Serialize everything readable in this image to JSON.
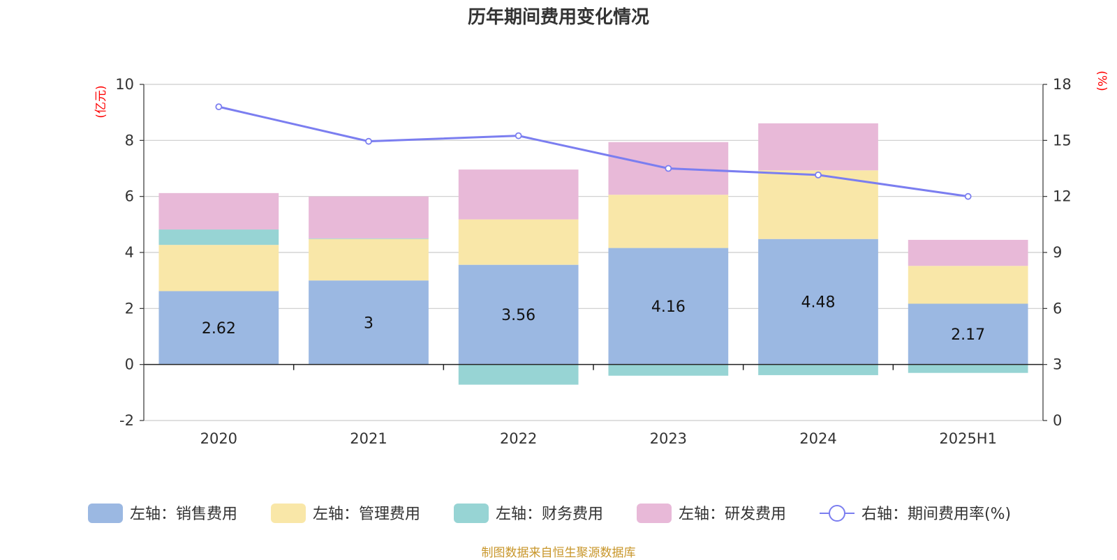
{
  "chart_data": {
    "type": "bar",
    "title": "历年期间费用变化情况",
    "categories": [
      "2020",
      "2021",
      "2022",
      "2023",
      "2024",
      "2025H1"
    ],
    "left_axis": {
      "unit": "(亿元)",
      "ylim": [
        -2,
        10
      ],
      "ticks": [
        "10",
        "8",
        "6",
        "4",
        "2",
        "0",
        "-2"
      ]
    },
    "right_axis": {
      "unit": "(%)",
      "ylim": [
        0,
        18
      ],
      "ticks": [
        "18",
        "15",
        "12",
        "9",
        "6",
        "3",
        "0"
      ]
    },
    "series": [
      {
        "name": "左轴：销售费用",
        "color": "#9bb8e2",
        "values": [
          2.62,
          3.0,
          3.56,
          4.16,
          4.48,
          2.17
        ],
        "labels": [
          "2.62",
          "3",
          "3.56",
          "4.16",
          "4.48",
          "2.17"
        ]
      },
      {
        "name": "左轴：管理费用",
        "color": "#f9e7a8",
        "values": [
          1.65,
          1.48,
          1.62,
          1.9,
          2.45,
          1.35
        ]
      },
      {
        "name": "左轴：财务费用",
        "color": "#97d4d4",
        "values": [
          0.55,
          0.02,
          -0.72,
          -0.4,
          -0.38,
          -0.3
        ]
      },
      {
        "name": "左轴：研发费用",
        "color": "#e8b9d8",
        "values": [
          1.3,
          1.5,
          1.78,
          1.88,
          1.68,
          0.93
        ]
      }
    ],
    "line": {
      "name": "右轴：期间费用率(%)",
      "color": "#7b7ef0",
      "values": [
        16.8,
        14.95,
        15.25,
        13.5,
        13.15,
        12.0
      ]
    },
    "grid": true,
    "legend": "bottom"
  },
  "footer": {
    "source": "制图数据来自恒生聚源数据库"
  }
}
